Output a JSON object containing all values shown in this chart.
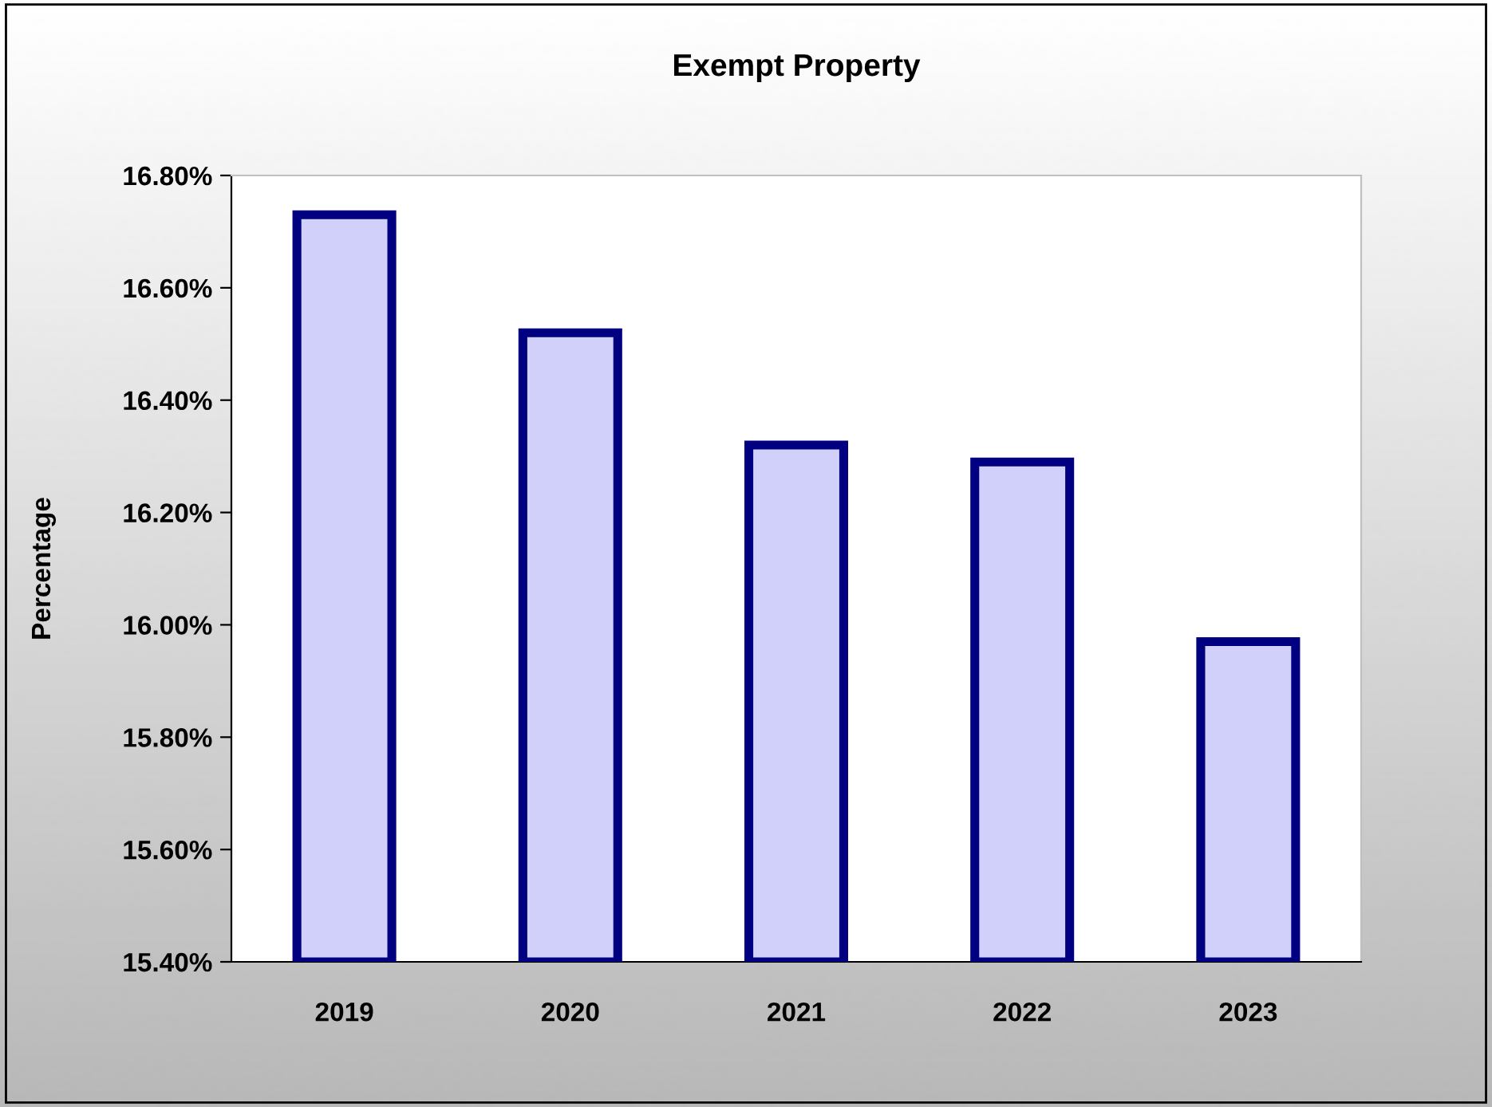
{
  "chart_data": {
    "type": "bar",
    "title": "Exempt Property",
    "ylabel": "Percentage",
    "categories": [
      "2019",
      "2020",
      "2021",
      "2022",
      "2023"
    ],
    "series": [
      {
        "color": "#d0d0fa",
        "values": [
          16.73,
          16.52,
          16.32,
          16.29,
          15.97
        ]
      }
    ],
    "ylim": [
      15.4,
      16.8
    ],
    "yticks": [
      {
        "value": 15.4,
        "label": "15.40%"
      },
      {
        "value": 15.6,
        "label": "15.60%"
      },
      {
        "value": 15.8,
        "label": "15.80%"
      },
      {
        "value": 16.0,
        "label": "16.00%"
      },
      {
        "value": 16.2,
        "label": "16.20%"
      },
      {
        "value": 16.4,
        "label": "16.40%"
      },
      {
        "value": 16.6,
        "label": "16.60%"
      },
      {
        "value": 16.8,
        "label": "16.80%"
      }
    ],
    "grid": false,
    "legend": false
  }
}
